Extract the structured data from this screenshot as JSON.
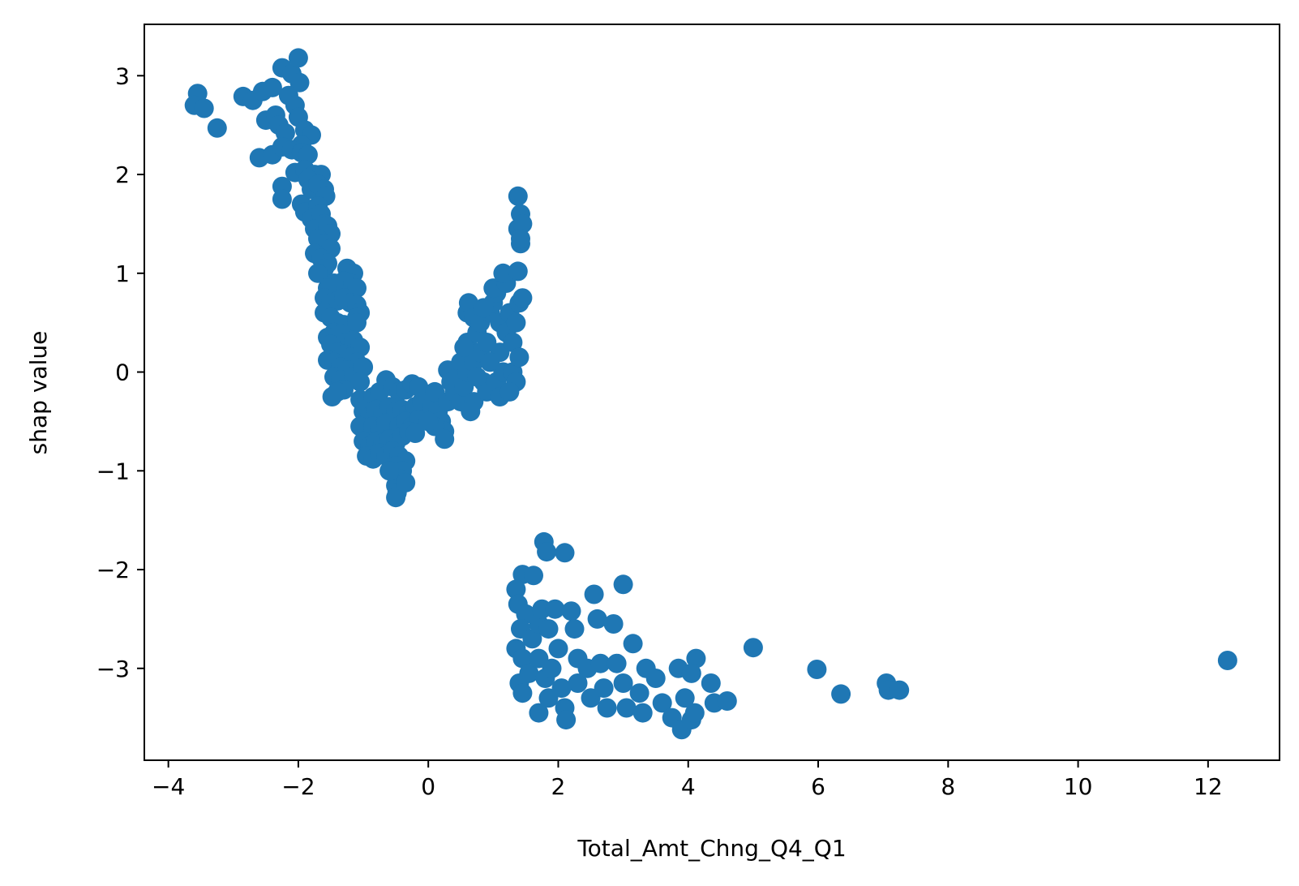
{
  "chart_data": {
    "type": "scatter",
    "xlabel": "Total_Amt_Chng_Q4_Q1",
    "ylabel": "shap value",
    "xlim": [
      -4.37,
      13.1
    ],
    "ylim": [
      -3.93,
      3.52
    ],
    "xticks": [
      {
        "value": -4,
        "label": "−4"
      },
      {
        "value": -2,
        "label": "−2"
      },
      {
        "value": 0,
        "label": "0"
      },
      {
        "value": 2,
        "label": "2"
      },
      {
        "value": 4,
        "label": "4"
      },
      {
        "value": 6,
        "label": "6"
      },
      {
        "value": 8,
        "label": "8"
      },
      {
        "value": 10,
        "label": "10"
      },
      {
        "value": 12,
        "label": "12"
      }
    ],
    "yticks": [
      {
        "value": -3,
        "label": "−3"
      },
      {
        "value": -2,
        "label": "−2"
      },
      {
        "value": -1,
        "label": "−1"
      },
      {
        "value": 0,
        "label": "0"
      },
      {
        "value": 1,
        "label": "1"
      },
      {
        "value": 2,
        "label": "2"
      },
      {
        "value": 3,
        "label": "3"
      }
    ],
    "grid": false,
    "marker_color": "#1f77b4",
    "series": [
      {
        "points": [
          [
            -3.55,
            2.82
          ],
          [
            -3.6,
            2.7
          ],
          [
            -3.45,
            2.67
          ],
          [
            -3.25,
            2.47
          ],
          [
            -2.85,
            2.79
          ],
          [
            -2.7,
            2.75
          ],
          [
            -2.55,
            2.84
          ],
          [
            -2.4,
            2.88
          ],
          [
            -2.5,
            2.55
          ],
          [
            -2.35,
            2.6
          ],
          [
            -2.25,
            3.08
          ],
          [
            -2.1,
            3.02
          ],
          [
            -2.0,
            3.18
          ],
          [
            -1.98,
            2.93
          ],
          [
            -2.15,
            2.8
          ],
          [
            -2.05,
            2.7
          ],
          [
            -2.3,
            2.5
          ],
          [
            -2.2,
            2.42
          ],
          [
            -2.0,
            2.58
          ],
          [
            -1.9,
            2.45
          ],
          [
            -1.8,
            2.4
          ],
          [
            -1.95,
            2.3
          ],
          [
            -2.6,
            2.17
          ],
          [
            -2.4,
            2.2
          ],
          [
            -2.25,
            2.28
          ],
          [
            -2.1,
            2.25
          ],
          [
            -1.95,
            2.22
          ],
          [
            -1.85,
            2.2
          ],
          [
            -2.05,
            2.02
          ],
          [
            -1.9,
            2.05
          ],
          [
            -1.75,
            2.0
          ],
          [
            -1.65,
            2.0
          ],
          [
            -1.85,
            1.95
          ],
          [
            -2.25,
            1.88
          ],
          [
            -2.25,
            1.75
          ],
          [
            -1.95,
            1.7
          ],
          [
            -1.9,
            1.62
          ],
          [
            -1.8,
            1.85
          ],
          [
            -1.7,
            1.9
          ],
          [
            -1.6,
            1.85
          ],
          [
            -1.58,
            1.78
          ],
          [
            -1.7,
            1.68
          ],
          [
            -1.8,
            1.55
          ],
          [
            -1.65,
            1.6
          ],
          [
            -1.75,
            1.45
          ],
          [
            -1.6,
            1.5
          ],
          [
            -1.55,
            1.48
          ],
          [
            -1.5,
            1.4
          ],
          [
            -1.7,
            1.35
          ],
          [
            -1.6,
            1.3
          ],
          [
            -1.5,
            1.25
          ],
          [
            -1.75,
            1.2
          ],
          [
            -1.65,
            1.15
          ],
          [
            -1.55,
            1.1
          ],
          [
            -1.6,
            1.05
          ],
          [
            -1.7,
            1.0
          ],
          [
            -1.25,
            1.05
          ],
          [
            -1.15,
            1.0
          ],
          [
            -1.2,
            0.9
          ],
          [
            -1.3,
            0.92
          ],
          [
            -1.1,
            0.85
          ],
          [
            -1.45,
            0.9
          ],
          [
            -1.55,
            0.85
          ],
          [
            -1.6,
            0.75
          ],
          [
            -1.5,
            0.7
          ],
          [
            -1.4,
            0.72
          ],
          [
            -1.3,
            0.75
          ],
          [
            -1.2,
            0.7
          ],
          [
            -1.1,
            0.68
          ],
          [
            -1.05,
            0.6
          ],
          [
            -1.1,
            0.55
          ],
          [
            -1.6,
            0.6
          ],
          [
            -1.5,
            0.55
          ],
          [
            -1.4,
            0.5
          ],
          [
            -1.3,
            0.48
          ],
          [
            -1.2,
            0.45
          ],
          [
            -1.1,
            0.5
          ],
          [
            -1.45,
            0.4
          ],
          [
            -1.35,
            0.38
          ],
          [
            -1.55,
            0.35
          ],
          [
            -1.25,
            0.3
          ],
          [
            -1.15,
            0.32
          ],
          [
            -1.05,
            0.25
          ],
          [
            -1.5,
            0.28
          ],
          [
            -1.4,
            0.2
          ],
          [
            -1.3,
            0.18
          ],
          [
            -1.55,
            0.12
          ],
          [
            -1.45,
            0.1
          ],
          [
            -1.2,
            0.15
          ],
          [
            -1.1,
            0.1
          ],
          [
            -1.35,
            0.05
          ],
          [
            -1.25,
            0.02
          ],
          [
            -1.45,
            -0.05
          ],
          [
            -1.35,
            -0.08
          ],
          [
            -1.15,
            -0.05
          ],
          [
            -1.0,
            0.05
          ],
          [
            -1.05,
            -0.1
          ],
          [
            -1.3,
            -0.18
          ],
          [
            -1.48,
            -0.25
          ],
          [
            -1.4,
            -0.2
          ],
          [
            -1.05,
            -0.28
          ],
          [
            -0.95,
            -0.3
          ],
          [
            -0.85,
            -0.25
          ],
          [
            -0.75,
            -0.2
          ],
          [
            -0.65,
            -0.08
          ],
          [
            -0.55,
            -0.15
          ],
          [
            -0.45,
            -0.2
          ],
          [
            -0.35,
            -0.18
          ],
          [
            -0.25,
            -0.12
          ],
          [
            -0.15,
            -0.15
          ],
          [
            -1.0,
            -0.4
          ],
          [
            -0.9,
            -0.45
          ],
          [
            -0.8,
            -0.38
          ],
          [
            -0.7,
            -0.42
          ],
          [
            -0.6,
            -0.35
          ],
          [
            -0.5,
            -0.4
          ],
          [
            -0.4,
            -0.38
          ],
          [
            -0.3,
            -0.42
          ],
          [
            -0.2,
            -0.35
          ],
          [
            -0.1,
            -0.3
          ],
          [
            -1.05,
            -0.55
          ],
          [
            -0.95,
            -0.6
          ],
          [
            -0.85,
            -0.55
          ],
          [
            -0.75,
            -0.58
          ],
          [
            -0.65,
            -0.52
          ],
          [
            -0.55,
            -0.6
          ],
          [
            -0.45,
            -0.55
          ],
          [
            -0.35,
            -0.5
          ],
          [
            -0.25,
            -0.55
          ],
          [
            -0.15,
            -0.48
          ],
          [
            -1.0,
            -0.7
          ],
          [
            -0.9,
            -0.75
          ],
          [
            -0.8,
            -0.7
          ],
          [
            -0.7,
            -0.72
          ],
          [
            -0.6,
            -0.68
          ],
          [
            -0.5,
            -0.72
          ],
          [
            -0.4,
            -0.65
          ],
          [
            -0.3,
            -0.6
          ],
          [
            -0.2,
            -0.62
          ],
          [
            -0.95,
            -0.85
          ],
          [
            -0.85,
            -0.88
          ],
          [
            -0.75,
            -0.82
          ],
          [
            -0.65,
            -0.85
          ],
          [
            -0.55,
            -0.8
          ],
          [
            -0.45,
            -0.85
          ],
          [
            -0.35,
            -0.9
          ],
          [
            -0.5,
            -0.95
          ],
          [
            -0.4,
            -1.0
          ],
          [
            -0.45,
            -1.08
          ],
          [
            -0.5,
            -1.15
          ],
          [
            -0.48,
            -1.22
          ],
          [
            -0.5,
            -1.27
          ],
          [
            -0.35,
            -1.12
          ],
          [
            -0.6,
            -1.0
          ],
          [
            0.0,
            -0.25
          ],
          [
            0.05,
            -0.35
          ],
          [
            0.1,
            -0.2
          ],
          [
            0.15,
            -0.4
          ],
          [
            0.2,
            -0.5
          ],
          [
            0.25,
            -0.6
          ],
          [
            0.25,
            -0.68
          ],
          [
            0.1,
            -0.55
          ],
          [
            0.0,
            -0.5
          ],
          [
            0.3,
            -0.3
          ],
          [
            0.3,
            0.02
          ],
          [
            0.35,
            -0.1
          ],
          [
            0.4,
            -0.2
          ],
          [
            0.45,
            -0.05
          ],
          [
            0.5,
            0.1
          ],
          [
            0.5,
            -0.3
          ],
          [
            0.55,
            -0.15
          ],
          [
            0.6,
            0.0
          ],
          [
            0.6,
            0.3
          ],
          [
            0.65,
            0.2
          ],
          [
            0.7,
            0.1
          ],
          [
            0.7,
            -0.3
          ],
          [
            0.65,
            -0.4
          ],
          [
            0.75,
            0.4
          ],
          [
            0.6,
            0.6
          ],
          [
            0.62,
            0.7
          ],
          [
            0.7,
            0.55
          ],
          [
            0.8,
            0.5
          ],
          [
            0.8,
            0.2
          ],
          [
            0.85,
            -0.1
          ],
          [
            0.9,
            -0.2
          ],
          [
            0.9,
            0.3
          ],
          [
            0.95,
            0.6
          ],
          [
            1.0,
            0.7
          ],
          [
            1.05,
            0.8
          ],
          [
            1.0,
            0.85
          ],
          [
            1.1,
            0.5
          ],
          [
            1.1,
            0.2
          ],
          [
            1.05,
            -0.1
          ],
          [
            1.1,
            -0.25
          ],
          [
            1.15,
            0.0
          ],
          [
            1.2,
            0.4
          ],
          [
            1.2,
            0.9
          ],
          [
            1.15,
            1.0
          ],
          [
            1.25,
            0.6
          ],
          [
            1.3,
            0.3
          ],
          [
            1.3,
            0.0
          ],
          [
            1.35,
            0.5
          ],
          [
            1.35,
            -0.1
          ],
          [
            1.4,
            0.15
          ],
          [
            1.4,
            0.7
          ],
          [
            1.45,
            0.75
          ],
          [
            1.38,
            1.02
          ],
          [
            1.42,
            1.3
          ],
          [
            1.38,
            1.45
          ],
          [
            1.42,
            1.6
          ],
          [
            1.38,
            1.78
          ],
          [
            1.45,
            1.5
          ],
          [
            1.42,
            1.35
          ],
          [
            0.85,
            0.65
          ],
          [
            0.75,
            -0.05
          ],
          [
            0.55,
            0.25
          ],
          [
            0.95,
            0.1
          ],
          [
            1.25,
            -0.2
          ],
          [
            1.78,
            -1.72
          ],
          [
            1.82,
            -1.82
          ],
          [
            2.1,
            -1.83
          ],
          [
            3.0,
            -2.15
          ],
          [
            1.45,
            -2.05
          ],
          [
            1.62,
            -2.06
          ],
          [
            1.35,
            -2.2
          ],
          [
            1.38,
            -2.35
          ],
          [
            1.5,
            -2.45
          ],
          [
            1.42,
            -2.6
          ],
          [
            1.35,
            -2.8
          ],
          [
            1.45,
            -2.9
          ],
          [
            1.4,
            -3.15
          ],
          [
            1.45,
            -3.25
          ],
          [
            1.55,
            -3.05
          ],
          [
            1.6,
            -2.7
          ],
          [
            1.7,
            -2.55
          ],
          [
            1.75,
            -2.4
          ],
          [
            1.85,
            -2.6
          ],
          [
            1.95,
            -2.4
          ],
          [
            1.7,
            -2.9
          ],
          [
            1.8,
            -3.1
          ],
          [
            1.85,
            -3.3
          ],
          [
            1.7,
            -3.45
          ],
          [
            1.9,
            -3.0
          ],
          [
            2.0,
            -2.8
          ],
          [
            2.05,
            -3.2
          ],
          [
            2.1,
            -3.4
          ],
          [
            2.12,
            -3.52
          ],
          [
            2.2,
            -2.42
          ],
          [
            2.25,
            -2.6
          ],
          [
            2.3,
            -2.9
          ],
          [
            2.3,
            -3.15
          ],
          [
            2.45,
            -3.0
          ],
          [
            2.5,
            -3.3
          ],
          [
            2.55,
            -2.25
          ],
          [
            2.6,
            -2.5
          ],
          [
            2.65,
            -2.95
          ],
          [
            2.7,
            -3.2
          ],
          [
            2.75,
            -3.4
          ],
          [
            2.85,
            -2.55
          ],
          [
            2.9,
            -2.95
          ],
          [
            3.0,
            -3.15
          ],
          [
            3.05,
            -3.4
          ],
          [
            3.15,
            -2.75
          ],
          [
            3.25,
            -3.25
          ],
          [
            3.3,
            -3.45
          ],
          [
            3.35,
            -3.0
          ],
          [
            3.5,
            -3.1
          ],
          [
            3.6,
            -3.35
          ],
          [
            3.75,
            -3.5
          ],
          [
            3.9,
            -3.62
          ],
          [
            3.85,
            -3.0
          ],
          [
            3.95,
            -3.3
          ],
          [
            4.05,
            -3.52
          ],
          [
            4.1,
            -3.45
          ],
          [
            4.12,
            -2.9
          ],
          [
            4.05,
            -3.05
          ],
          [
            4.35,
            -3.15
          ],
          [
            4.4,
            -3.35
          ],
          [
            4.6,
            -3.33
          ],
          [
            5.0,
            -2.79
          ],
          [
            5.98,
            -3.01
          ],
          [
            6.35,
            -3.26
          ],
          [
            7.05,
            -3.15
          ],
          [
            7.08,
            -3.22
          ],
          [
            7.25,
            -3.22
          ],
          [
            12.3,
            -2.92
          ]
        ]
      }
    ]
  }
}
